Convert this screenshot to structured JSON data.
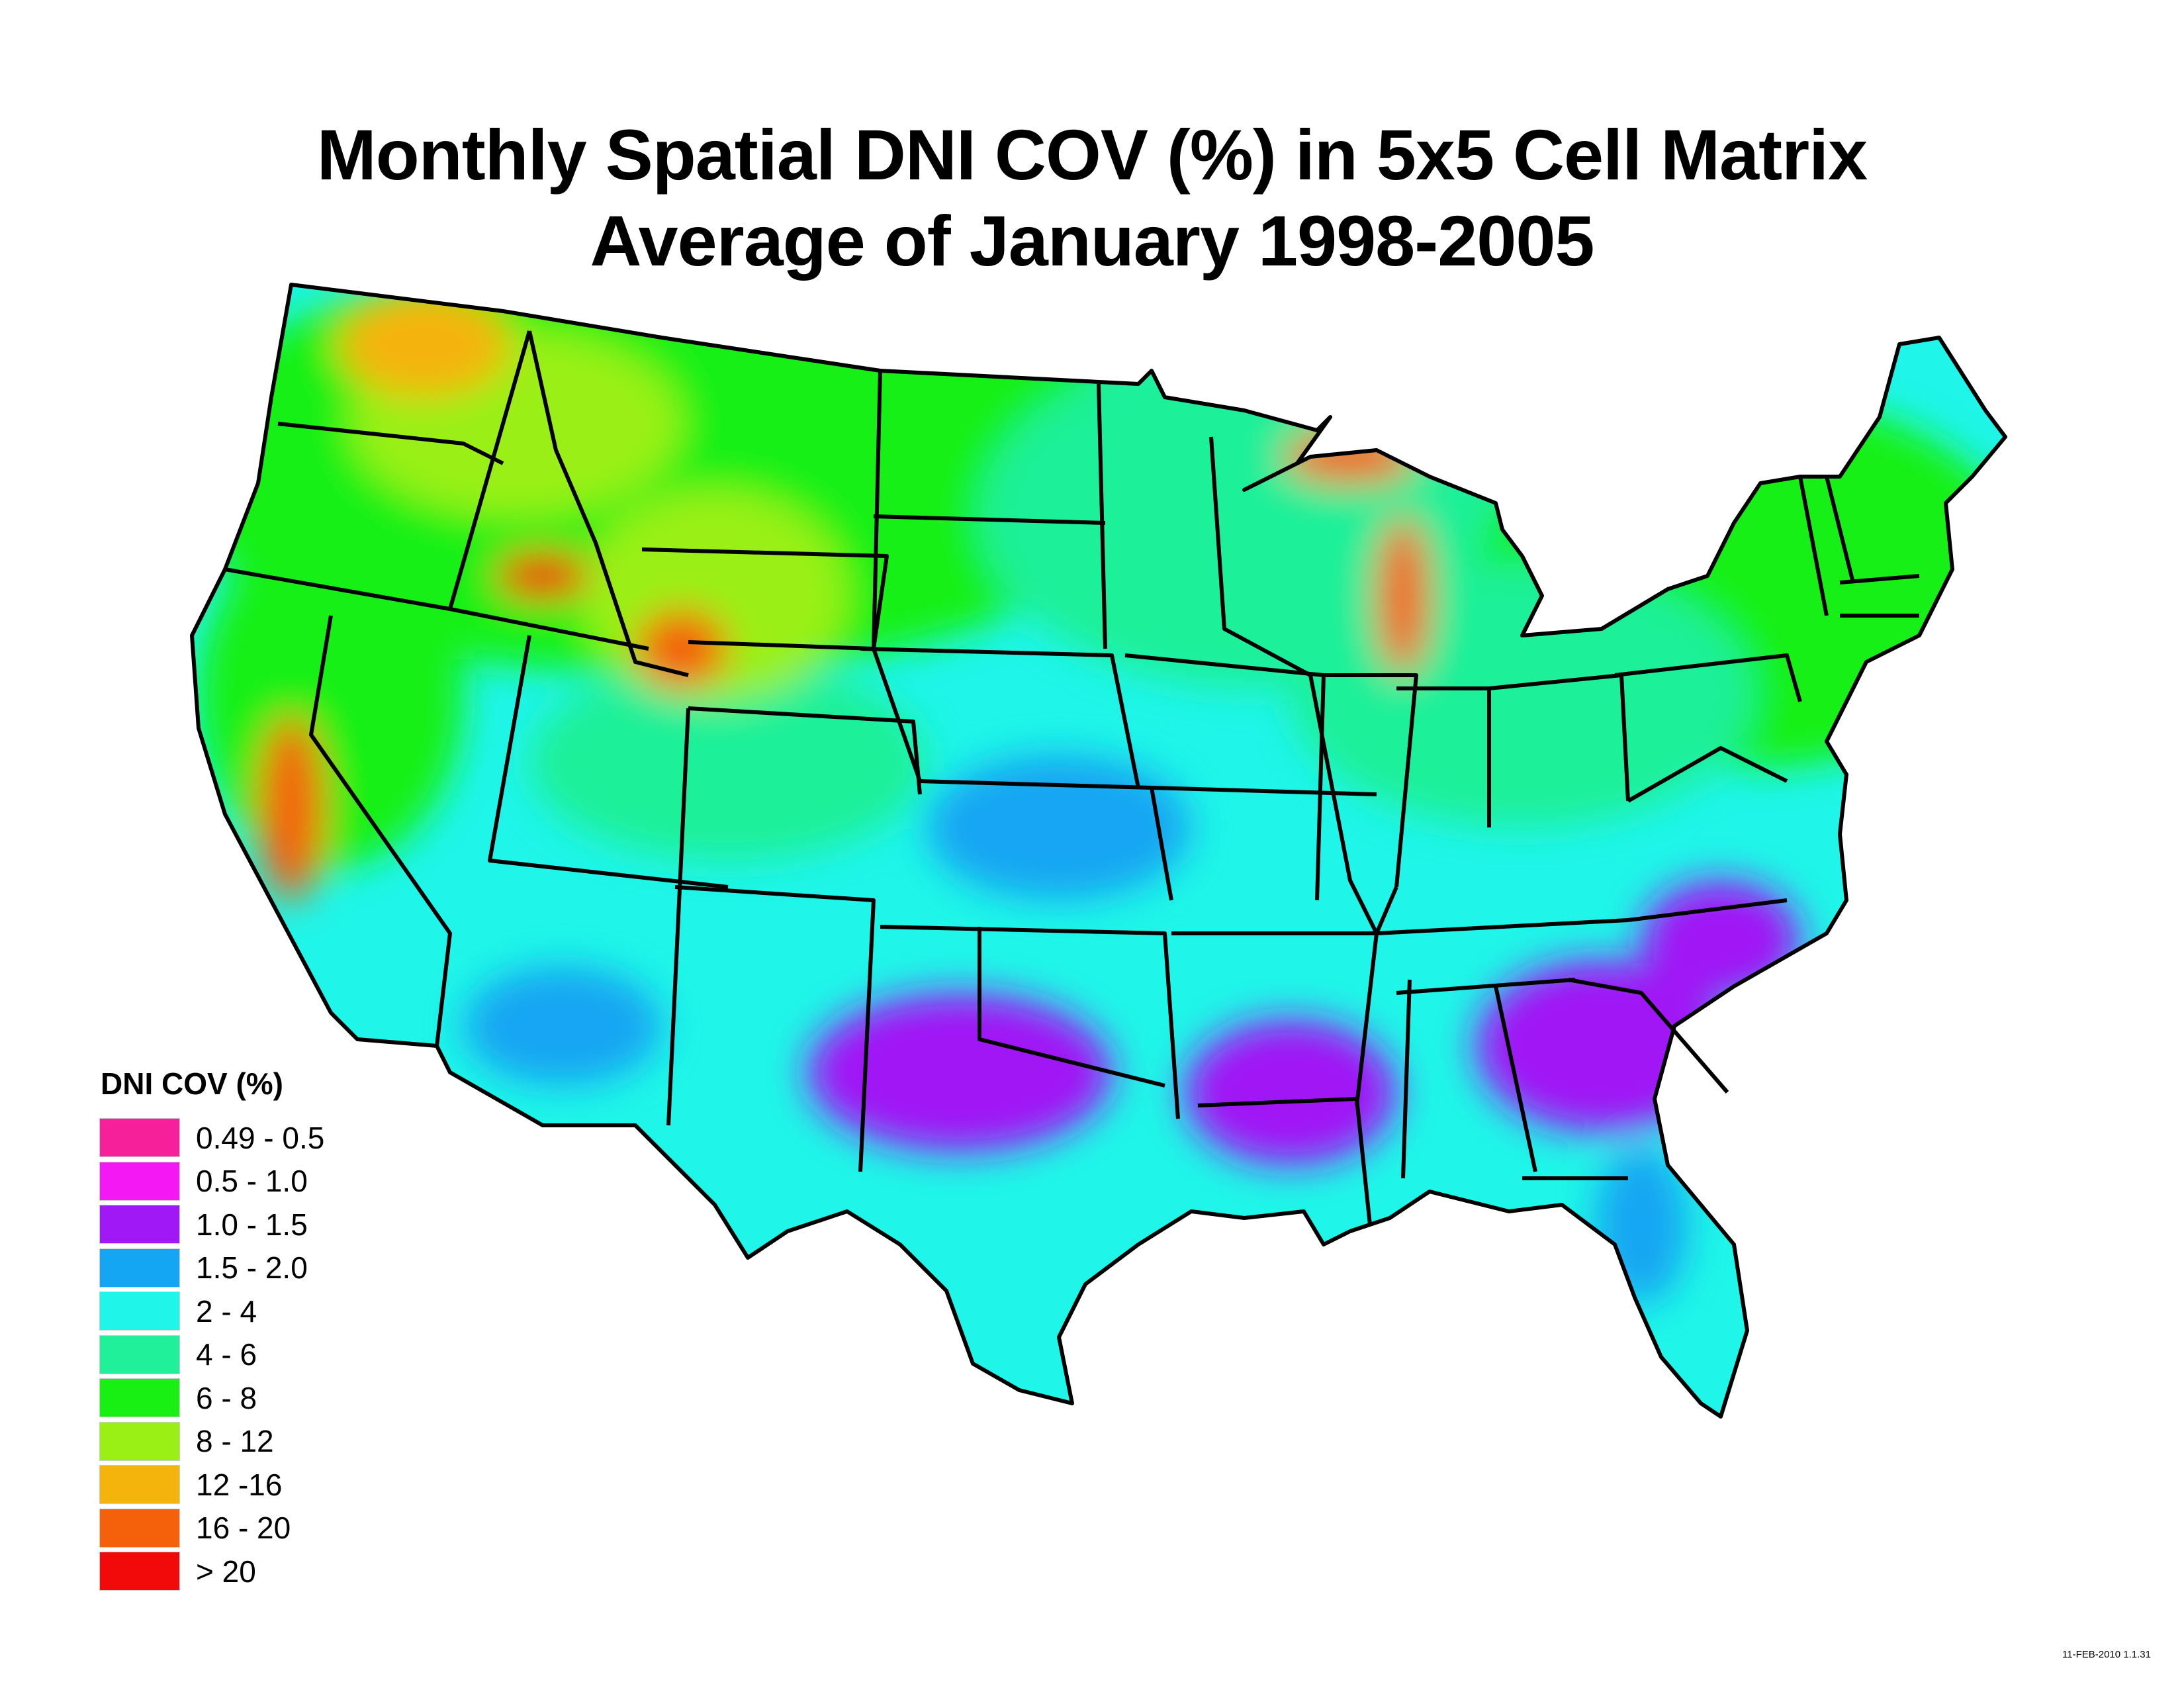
{
  "title_line1": "Monthly Spatial DNI COV (%) in 5x5 Cell Matrix",
  "title_line2": "Average of January 1998-2005",
  "legend": {
    "title": "DNI COV (%)",
    "items": [
      {
        "label": "0.49 - 0.5",
        "color": "#f5209a"
      },
      {
        "label": "0.5 - 1.0",
        "color": "#f418f4"
      },
      {
        "label": "1.0 - 1.5",
        "color": "#a018f5"
      },
      {
        "label": "1.5 - 2.0",
        "color": "#14a6f3"
      },
      {
        "label": "2 - 4",
        "color": "#1ff5e8"
      },
      {
        "label": "4 - 6",
        "color": "#1ff099"
      },
      {
        "label": "6 - 8",
        "color": "#17f012"
      },
      {
        "label": "8 - 12",
        "color": "#9af014"
      },
      {
        "label": "12 -16",
        "color": "#f5b40c"
      },
      {
        "label": "16 - 20",
        "color": "#f5600a"
      },
      {
        "label": "> 20",
        "color": "#f20a0a"
      }
    ]
  },
  "timestamp": "11-FEB-2010 1.1.31"
}
